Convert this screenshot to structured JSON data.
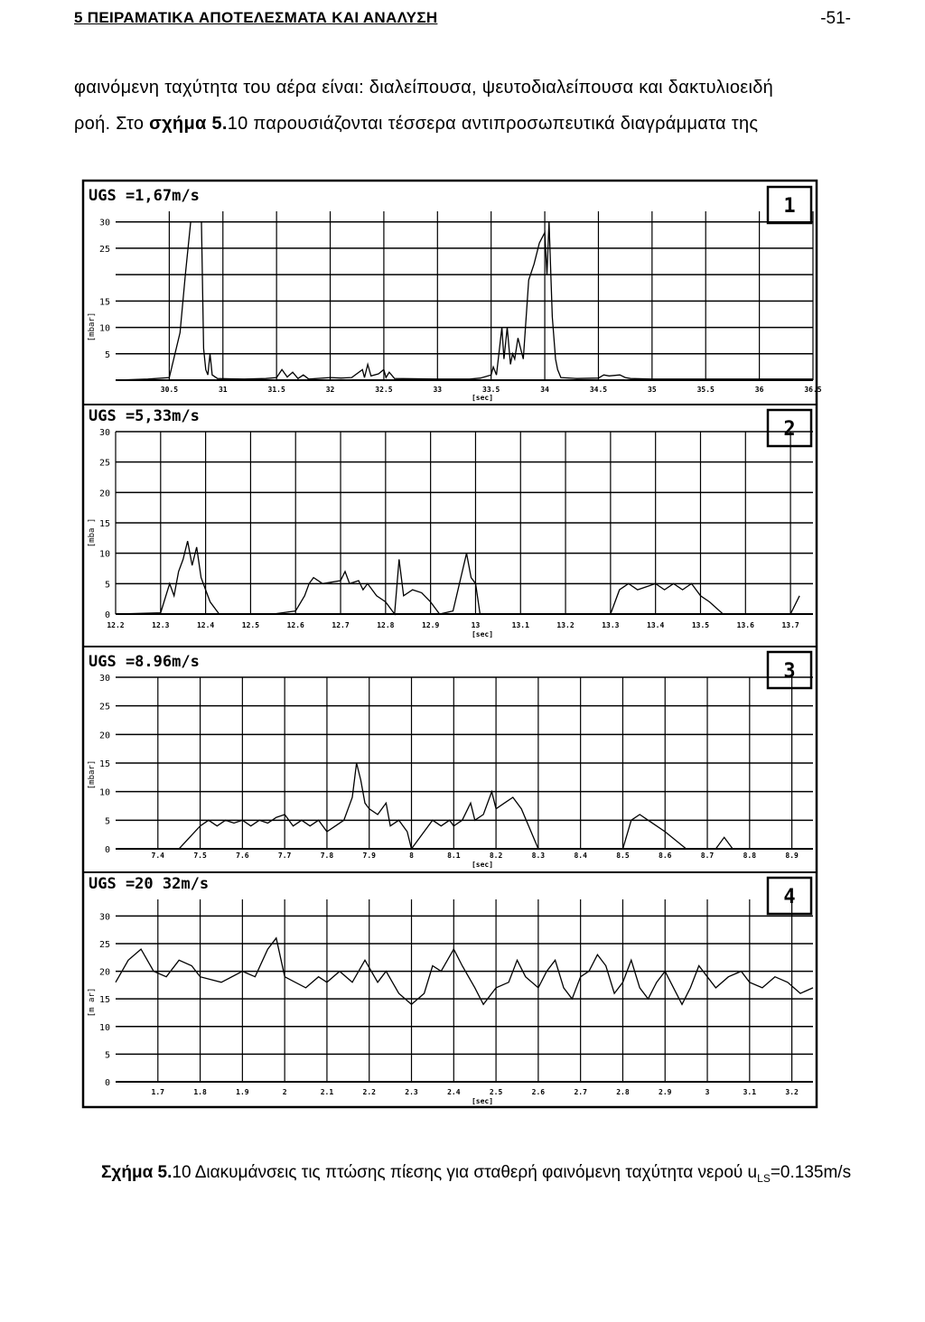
{
  "page": {
    "section_header": "5 ΠΕΙΡΑΜΑΤΙΚΑ ΑΠΟΤΕΛΕΣΜΑΤΑ ΚΑΙ ΑΝΑΛΥΣΗ",
    "page_number": "-51-",
    "paragraph_line1": "φαινόμενη ταχύτητα του αέρα είναι: διαλείπουσα, ψευτοδιαλείπουσα και δακτυλιοειδή",
    "paragraph_line2_a": "ροή. Στο ",
    "paragraph_line2_ref": "σχήμα 5.",
    "paragraph_line2_b": "10 παρουσιάζονται τέσσερα αντιπροσωπευτικά διαγράμματα της",
    "caption_label": "Σχήμα 5.",
    "caption_text_a": "10 Διακυμάνσεις τις πτώσης πίεσης για σταθερή φαινόμενη ταχύτητα νερού u",
    "caption_sub": "LS",
    "caption_text_b": "=0.135m/s"
  },
  "chart_data": [
    {
      "type": "line",
      "panel_number": "1",
      "title": "UGS =1,67m/s",
      "ylabel": "[mbar]",
      "xlabel": "[sec]",
      "yticks": [
        "30",
        "25",
        "",
        "15",
        "10",
        "5"
      ],
      "xticks": [
        "30.5",
        "31",
        "31.5",
        "32",
        "32.5",
        "33",
        "33.5",
        "34",
        "34.5",
        "35",
        "35.5",
        "36",
        "36.5"
      ],
      "xlim": [
        30.0,
        36.5
      ],
      "ylim": [
        0,
        32
      ],
      "series": [
        {
          "values": [
            [
              30.0,
              0
            ],
            [
              30.3,
              0.2
            ],
            [
              30.5,
              0.5
            ],
            [
              30.6,
              9
            ],
            [
              30.65,
              20
            ],
            [
              30.7,
              30
            ],
            [
              30.75,
              30
            ],
            [
              30.8,
              30
            ],
            [
              30.82,
              6
            ],
            [
              30.84,
              2
            ],
            [
              30.86,
              1
            ],
            [
              30.88,
              5
            ],
            [
              30.9,
              1
            ],
            [
              30.95,
              0.3
            ],
            [
              31.2,
              0.2
            ],
            [
              31.4,
              0.3
            ],
            [
              31.5,
              0.5
            ],
            [
              31.55,
              2
            ],
            [
              31.6,
              0.6
            ],
            [
              31.65,
              1.5
            ],
            [
              31.7,
              0.3
            ],
            [
              31.75,
              1
            ],
            [
              31.8,
              0.2
            ],
            [
              32.0,
              0.5
            ],
            [
              32.1,
              0.4
            ],
            [
              32.2,
              0.5
            ],
            [
              32.3,
              2
            ],
            [
              32.32,
              0.5
            ],
            [
              32.35,
              3
            ],
            [
              32.38,
              0.8
            ],
            [
              32.45,
              1.2
            ],
            [
              32.5,
              2
            ],
            [
              32.52,
              0.5
            ],
            [
              32.55,
              1.5
            ],
            [
              32.6,
              0.3
            ],
            [
              33.0,
              0.2
            ],
            [
              33.3,
              0.2
            ],
            [
              33.4,
              0.4
            ],
            [
              33.5,
              1
            ],
            [
              33.52,
              2.5
            ],
            [
              33.55,
              1
            ],
            [
              33.6,
              10
            ],
            [
              33.62,
              4
            ],
            [
              33.65,
              10
            ],
            [
              33.68,
              3
            ],
            [
              33.7,
              5
            ],
            [
              33.72,
              4
            ],
            [
              33.75,
              8
            ],
            [
              33.8,
              4
            ],
            [
              33.85,
              19
            ],
            [
              33.9,
              22
            ],
            [
              33.95,
              26
            ],
            [
              34.0,
              28
            ],
            [
              34.02,
              20
            ],
            [
              34.04,
              30
            ],
            [
              34.07,
              12
            ],
            [
              34.1,
              4
            ],
            [
              34.12,
              2
            ],
            [
              34.15,
              0.5
            ],
            [
              34.3,
              0.3
            ],
            [
              34.5,
              0.4
            ],
            [
              34.55,
              1
            ],
            [
              34.6,
              0.8
            ],
            [
              34.7,
              1
            ],
            [
              34.75,
              0.5
            ],
            [
              34.8,
              0.3
            ],
            [
              35.0,
              0.2
            ],
            [
              36.5,
              0.2
            ]
          ]
        }
      ]
    },
    {
      "type": "line",
      "panel_number": "2",
      "title": "UGS =5,33m/s",
      "ylabel": "[mba ]",
      "xlabel": "[sec]",
      "yticks": [
        "30",
        "25",
        "20",
        "15",
        "10",
        "5",
        "0"
      ],
      "xticks": [
        "12.2",
        "12.3",
        "12.4",
        "12.5",
        "12.6",
        "12.7",
        "12.8",
        "12.9",
        "13",
        "13.1",
        "13.2",
        "13.3",
        "13.4",
        "13.5",
        "13.6",
        "13.7"
      ],
      "xlim": [
        12.2,
        13.75
      ],
      "ylim": [
        0,
        30
      ],
      "series": [
        {
          "values": [
            [
              12.2,
              0
            ],
            [
              12.3,
              0.2
            ],
            [
              12.32,
              5
            ],
            [
              12.33,
              3
            ],
            [
              12.34,
              7
            ],
            [
              12.35,
              9
            ],
            [
              12.36,
              12
            ],
            [
              12.37,
              8
            ],
            [
              12.38,
              11
            ],
            [
              12.39,
              6
            ],
            [
              12.4,
              4
            ],
            [
              12.41,
              2
            ],
            [
              12.43,
              0
            ],
            [
              12.55,
              0
            ],
            [
              12.6,
              0.5
            ],
            [
              12.62,
              3
            ],
            [
              12.63,
              5
            ],
            [
              12.64,
              6
            ],
            [
              12.66,
              5
            ],
            [
              12.7,
              5.5
            ],
            [
              12.71,
              7
            ],
            [
              12.72,
              5
            ],
            [
              12.74,
              5.5
            ],
            [
              12.75,
              4
            ],
            [
              12.76,
              5
            ],
            [
              12.78,
              3
            ],
            [
              12.8,
              2
            ],
            [
              12.82,
              0
            ],
            [
              12.83,
              9
            ],
            [
              12.84,
              3
            ],
            [
              12.86,
              4
            ],
            [
              12.88,
              3.5
            ],
            [
              12.9,
              2
            ],
            [
              12.92,
              0
            ],
            [
              12.95,
              0.5
            ],
            [
              12.98,
              10
            ],
            [
              12.99,
              6
            ],
            [
              13.0,
              5
            ],
            [
              13.01,
              0
            ],
            [
              13.3,
              0
            ],
            [
              13.32,
              4
            ],
            [
              13.34,
              5
            ],
            [
              13.36,
              4
            ],
            [
              13.38,
              4.5
            ],
            [
              13.4,
              5
            ],
            [
              13.42,
              4
            ],
            [
              13.44,
              5
            ],
            [
              13.46,
              4
            ],
            [
              13.48,
              5
            ],
            [
              13.5,
              3
            ],
            [
              13.52,
              2
            ],
            [
              13.55,
              0
            ],
            [
              13.7,
              0
            ],
            [
              13.72,
              3
            ]
          ]
        }
      ]
    },
    {
      "type": "line",
      "panel_number": "3",
      "title": "UGS =8.96m/s",
      "ylabel": "[mbar]",
      "xlabel": "[sec]",
      "yticks": [
        "30",
        "25",
        "20",
        "15",
        "10",
        "5",
        "0"
      ],
      "xticks": [
        "7.4",
        "7.5",
        "7.6",
        "7.7",
        "7.8",
        "7.9",
        "8",
        "8.1",
        "8.2",
        "8.3",
        "8.4",
        "8.5",
        "8.6",
        "8.7",
        "8.8",
        "8.9"
      ],
      "xlim": [
        7.3,
        8.95
      ],
      "ylim": [
        0,
        30
      ],
      "series": [
        {
          "values": [
            [
              7.3,
              0
            ],
            [
              7.4,
              0
            ],
            [
              7.45,
              0
            ],
            [
              7.5,
              4
            ],
            [
              7.52,
              5
            ],
            [
              7.54,
              4
            ],
            [
              7.56,
              5
            ],
            [
              7.58,
              4.5
            ],
            [
              7.6,
              5
            ],
            [
              7.62,
              4
            ],
            [
              7.64,
              5
            ],
            [
              7.66,
              4.5
            ],
            [
              7.68,
              5.5
            ],
            [
              7.7,
              6
            ],
            [
              7.72,
              4
            ],
            [
              7.74,
              5
            ],
            [
              7.76,
              4
            ],
            [
              7.78,
              5
            ],
            [
              7.8,
              3
            ],
            [
              7.82,
              4
            ],
            [
              7.84,
              5
            ],
            [
              7.86,
              9
            ],
            [
              7.87,
              15
            ],
            [
              7.88,
              12
            ],
            [
              7.89,
              8
            ],
            [
              7.9,
              7
            ],
            [
              7.92,
              6
            ],
            [
              7.94,
              8
            ],
            [
              7.95,
              4
            ],
            [
              7.97,
              5
            ],
            [
              7.99,
              3
            ],
            [
              8.0,
              0
            ],
            [
              8.05,
              5
            ],
            [
              8.07,
              4
            ],
            [
              8.09,
              5
            ],
            [
              8.1,
              4
            ],
            [
              8.12,
              5
            ],
            [
              8.14,
              8
            ],
            [
              8.15,
              5
            ],
            [
              8.17,
              6
            ],
            [
              8.19,
              10
            ],
            [
              8.2,
              7
            ],
            [
              8.22,
              8
            ],
            [
              8.24,
              9
            ],
            [
              8.26,
              7
            ],
            [
              8.3,
              0
            ],
            [
              8.5,
              0
            ],
            [
              8.52,
              5
            ],
            [
              8.54,
              6
            ],
            [
              8.56,
              5
            ],
            [
              8.58,
              4
            ],
            [
              8.6,
              3
            ],
            [
              8.65,
              0
            ],
            [
              8.72,
              0
            ],
            [
              8.74,
              2
            ],
            [
              8.76,
              0
            ],
            [
              8.95,
              0
            ]
          ]
        }
      ]
    },
    {
      "type": "line",
      "panel_number": "4",
      "title": "UGS =20 32m/s",
      "ylabel": "[m ar]",
      "xlabel": "[sec]",
      "yticks": [
        "30",
        "25",
        "20",
        "15",
        "10",
        "5",
        "0"
      ],
      "xticks": [
        "1.7",
        "1.8",
        "1.9",
        "2",
        "2.1",
        "2.2",
        "2.3",
        "2.4",
        "2.5",
        "2.6",
        "2.7",
        "2.8",
        "2.9",
        "3",
        "3.1",
        "3.2"
      ],
      "xlim": [
        1.6,
        3.25
      ],
      "ylim": [
        0,
        33
      ],
      "series": [
        {
          "values": [
            [
              1.6,
              18
            ],
            [
              1.63,
              22
            ],
            [
              1.66,
              24
            ],
            [
              1.69,
              20
            ],
            [
              1.72,
              19
            ],
            [
              1.75,
              22
            ],
            [
              1.78,
              21
            ],
            [
              1.8,
              19
            ],
            [
              1.85,
              18
            ],
            [
              1.9,
              20
            ],
            [
              1.93,
              19
            ],
            [
              1.96,
              24
            ],
            [
              1.98,
              26
            ],
            [
              2.0,
              19
            ],
            [
              2.05,
              17
            ],
            [
              2.08,
              19
            ],
            [
              2.1,
              18
            ],
            [
              2.13,
              20
            ],
            [
              2.16,
              18
            ],
            [
              2.19,
              22
            ],
            [
              2.22,
              18
            ],
            [
              2.24,
              20
            ],
            [
              2.27,
              16
            ],
            [
              2.3,
              14
            ],
            [
              2.33,
              16
            ],
            [
              2.35,
              21
            ],
            [
              2.37,
              20
            ],
            [
              2.4,
              24
            ],
            [
              2.42,
              21
            ],
            [
              2.45,
              17
            ],
            [
              2.47,
              14
            ],
            [
              2.5,
              17
            ],
            [
              2.53,
              18
            ],
            [
              2.55,
              22
            ],
            [
              2.57,
              19
            ],
            [
              2.6,
              17
            ],
            [
              2.62,
              20
            ],
            [
              2.64,
              22
            ],
            [
              2.66,
              17
            ],
            [
              2.68,
              15
            ],
            [
              2.7,
              19
            ],
            [
              2.72,
              20
            ],
            [
              2.74,
              23
            ],
            [
              2.76,
              21
            ],
            [
              2.78,
              16
            ],
            [
              2.8,
              18
            ],
            [
              2.82,
              22
            ],
            [
              2.84,
              17
            ],
            [
              2.86,
              15
            ],
            [
              2.88,
              18
            ],
            [
              2.9,
              20
            ],
            [
              2.92,
              17
            ],
            [
              2.94,
              14
            ],
            [
              2.96,
              17
            ],
            [
              2.98,
              21
            ],
            [
              3.0,
              19
            ],
            [
              3.02,
              17
            ],
            [
              3.05,
              19
            ],
            [
              3.08,
              20
            ],
            [
              3.1,
              18
            ],
            [
              3.13,
              17
            ],
            [
              3.16,
              19
            ],
            [
              3.19,
              18
            ],
            [
              3.22,
              16
            ],
            [
              3.25,
              17
            ]
          ]
        }
      ]
    }
  ]
}
